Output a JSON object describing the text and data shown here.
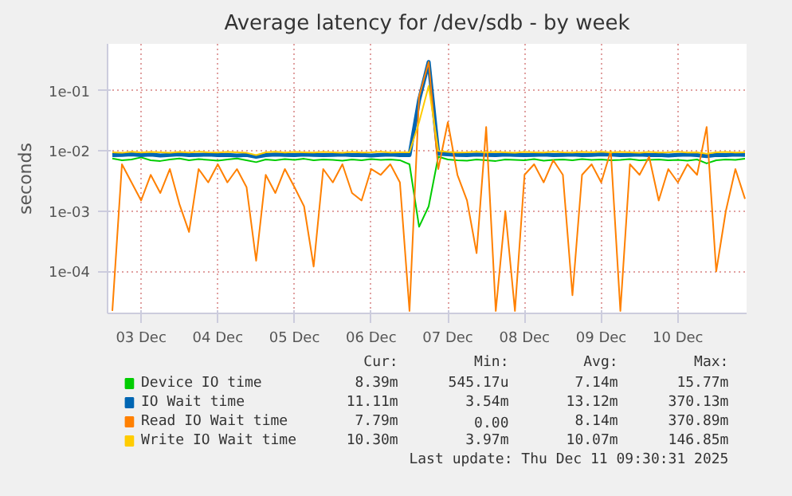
{
  "chart_data": {
    "type": "line",
    "title": "Average latency for /dev/sdb - by week",
    "ylabel": "seconds",
    "log": "y",
    "grid": true,
    "legend": "bottom",
    "marker": "none",
    "line_style": "solid",
    "xlim": [
      "2025-12-03T01:30",
      "2025-12-11T09:30"
    ],
    "xticks": [
      {
        "value": "2025-12-03T12:00",
        "label": "03 Dec"
      },
      {
        "value": "2025-12-04T12:00",
        "label": "04 Dec"
      },
      {
        "value": "2025-12-05T12:00",
        "label": "05 Dec"
      },
      {
        "value": "2025-12-06T12:00",
        "label": "06 Dec"
      },
      {
        "value": "2025-12-07T12:00",
        "label": "07 Dec"
      },
      {
        "value": "2025-12-08T12:00",
        "label": "08 Dec"
      },
      {
        "value": "2025-12-09T12:00",
        "label": "09 Dec"
      },
      {
        "value": "2025-12-10T12:00",
        "label": "10 Dec"
      }
    ],
    "ylim": [
      2e-05,
      0.6
    ],
    "yticks": [
      {
        "value": 0.0001,
        "label": "1e-04"
      },
      {
        "value": 0.001,
        "label": "1e-03"
      },
      {
        "value": 0.01,
        "label": "1e-02"
      },
      {
        "value": 0.1,
        "label": "1e-01"
      }
    ],
    "x": [
      "2025-12-03T03:00",
      "2025-12-03T06:00",
      "2025-12-03T09:00",
      "2025-12-03T12:00",
      "2025-12-03T15:00",
      "2025-12-03T18:00",
      "2025-12-03T21:00",
      "2025-12-04T00:00",
      "2025-12-04T03:00",
      "2025-12-04T06:00",
      "2025-12-04T09:00",
      "2025-12-04T12:00",
      "2025-12-04T15:00",
      "2025-12-04T18:00",
      "2025-12-04T21:00",
      "2025-12-05T00:00",
      "2025-12-05T03:00",
      "2025-12-05T06:00",
      "2025-12-05T09:00",
      "2025-12-05T12:00",
      "2025-12-05T15:00",
      "2025-12-05T18:00",
      "2025-12-05T21:00",
      "2025-12-06T00:00",
      "2025-12-06T03:00",
      "2025-12-06T06:00",
      "2025-12-06T09:00",
      "2025-12-06T12:00",
      "2025-12-06T15:00",
      "2025-12-06T18:00",
      "2025-12-06T21:00",
      "2025-12-07T00:00",
      "2025-12-07T03:00",
      "2025-12-07T06:00",
      "2025-12-07T09:00",
      "2025-12-07T12:00",
      "2025-12-07T15:00",
      "2025-12-07T18:00",
      "2025-12-07T21:00",
      "2025-12-08T00:00",
      "2025-12-08T03:00",
      "2025-12-08T06:00",
      "2025-12-08T09:00",
      "2025-12-08T12:00",
      "2025-12-08T15:00",
      "2025-12-08T18:00",
      "2025-12-08T21:00",
      "2025-12-09T00:00",
      "2025-12-09T03:00",
      "2025-12-09T06:00",
      "2025-12-09T09:00",
      "2025-12-09T12:00",
      "2025-12-09T15:00",
      "2025-12-09T18:00",
      "2025-12-09T21:00",
      "2025-12-10T00:00",
      "2025-12-10T03:00",
      "2025-12-10T06:00",
      "2025-12-10T09:00",
      "2025-12-10T12:00",
      "2025-12-10T15:00",
      "2025-12-10T18:00",
      "2025-12-10T21:00",
      "2025-12-11T00:00",
      "2025-12-11T03:00",
      "2025-12-11T06:00",
      "2025-12-11T09:00"
    ],
    "series": [
      {
        "name": "Device IO time",
        "color": "#00cc00",
        "values": [
          0.0075,
          0.007,
          0.0072,
          0.0078,
          0.007,
          0.0068,
          0.0072,
          0.0075,
          0.007,
          0.0073,
          0.0071,
          0.0069,
          0.0072,
          0.0075,
          0.007,
          0.0065,
          0.0072,
          0.007,
          0.0073,
          0.0071,
          0.0074,
          0.007,
          0.0072,
          0.0071,
          0.0069,
          0.0072,
          0.007,
          0.0073,
          0.0071,
          0.0072,
          0.007,
          0.006,
          0.00055,
          0.0012,
          0.008,
          0.0072,
          0.007,
          0.0069,
          0.0072,
          0.007,
          0.0068,
          0.0072,
          0.0071,
          0.007,
          0.0073,
          0.0069,
          0.0071,
          0.0072,
          0.007,
          0.0073,
          0.0071,
          0.0072,
          0.007,
          0.0071,
          0.0073,
          0.007,
          0.0071,
          0.0072,
          0.007,
          0.0071,
          0.0069,
          0.0072,
          0.0062,
          0.007,
          0.0072,
          0.0071,
          0.0074
        ]
      },
      {
        "name": "IO Wait time",
        "color": "#0066b3",
        "values": [
          0.0085,
          0.0086,
          0.0088,
          0.0085,
          0.0087,
          0.0084,
          0.0086,
          0.0088,
          0.0085,
          0.0086,
          0.0087,
          0.0085,
          0.0086,
          0.0084,
          0.0086,
          0.008,
          0.0085,
          0.0087,
          0.0086,
          0.0085,
          0.0087,
          0.0086,
          0.0085,
          0.0086,
          0.0087,
          0.0085,
          0.0086,
          0.0084,
          0.0086,
          0.0087,
          0.0085,
          0.0085,
          0.07,
          0.3,
          0.009,
          0.0088,
          0.0086,
          0.0085,
          0.0087,
          0.0086,
          0.0085,
          0.0087,
          0.0086,
          0.0085,
          0.0086,
          0.0087,
          0.0085,
          0.0086,
          0.0087,
          0.0085,
          0.0086,
          0.0088,
          0.0087,
          0.0085,
          0.0086,
          0.0087,
          0.0085,
          0.0086,
          0.0084,
          0.0086,
          0.0087,
          0.0085,
          0.0082,
          0.0086,
          0.0085,
          0.0087,
          0.0086
        ]
      },
      {
        "name": "Read IO Wait time",
        "color": "#ff8000",
        "values": [
          2.2e-05,
          0.006,
          0.003,
          0.0015,
          0.004,
          0.002,
          0.005,
          0.0013,
          0.00045,
          0.005,
          0.003,
          0.006,
          0.003,
          0.005,
          0.0025,
          0.00015,
          0.004,
          0.002,
          0.005,
          0.0025,
          0.0012,
          0.00012,
          0.005,
          0.003,
          0.006,
          0.002,
          0.0015,
          0.005,
          0.004,
          0.006,
          0.003,
          2.2e-05,
          0.08,
          0.3,
          0.005,
          0.03,
          0.004,
          0.0015,
          0.0002,
          0.025,
          2.2e-05,
          0.001,
          2.2e-05,
          0.004,
          0.006,
          0.003,
          0.007,
          0.004,
          4e-05,
          0.004,
          0.006,
          0.003,
          0.01,
          2.2e-05,
          0.006,
          0.004,
          0.008,
          0.0015,
          0.005,
          0.003,
          0.006,
          0.004,
          0.025,
          0.0001,
          0.001,
          0.005,
          0.0016
        ]
      },
      {
        "name": "Write IO Wait time",
        "color": "#ffcc00",
        "values": [
          0.0095,
          0.0093,
          0.0097,
          0.0094,
          0.0096,
          0.0095,
          0.0093,
          0.0096,
          0.0094,
          0.0097,
          0.0095,
          0.0094,
          0.0096,
          0.0095,
          0.0093,
          0.0085,
          0.0095,
          0.0097,
          0.0094,
          0.0096,
          0.0095,
          0.0094,
          0.0096,
          0.0095,
          0.0093,
          0.0096,
          0.0094,
          0.0095,
          0.0097,
          0.0094,
          0.0095,
          0.0095,
          0.03,
          0.12,
          0.01,
          0.0096,
          0.0094,
          0.0095,
          0.0097,
          0.0094,
          0.0096,
          0.0095,
          0.0093,
          0.0096,
          0.0095,
          0.0094,
          0.0097,
          0.0095,
          0.0094,
          0.0096,
          0.0095,
          0.0097,
          0.0094,
          0.0096,
          0.0095,
          0.0093,
          0.0096,
          0.0094,
          0.0095,
          0.0097,
          0.0094,
          0.0095,
          0.009,
          0.0095,
          0.0096,
          0.0094,
          0.0095
        ]
      }
    ],
    "annotations": [
      "Cur:",
      "Min:",
      "Avg:",
      "Max:",
      "8.39m",
      "545.17u",
      "7.14m",
      "15.77m",
      "11.11m",
      "3.54m",
      "13.12m",
      "370.13m",
      "7.79m",
      "0.00",
      "8.14m",
      "370.89m",
      "10.30m",
      "3.97m",
      "10.07m",
      "146.85m",
      "Last update: Thu Dec 11 09:30:31 2025"
    ]
  }
}
